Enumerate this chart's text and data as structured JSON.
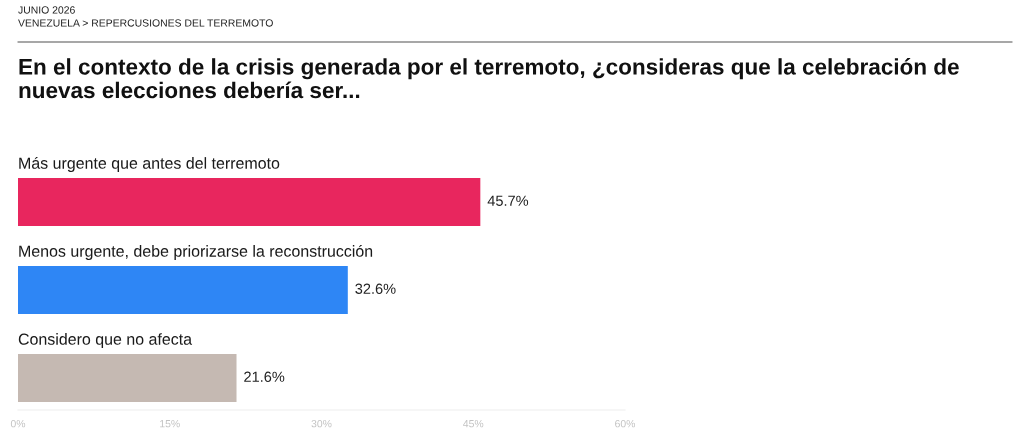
{
  "chart_data": {
    "type": "bar",
    "orientation": "horizontal",
    "title": "En el contexto de la crisis generada por el terremoto, ¿consideras que la celebración de nuevas elecciones debería ser...",
    "subtitle": "VENEZUELA > REPERCUSIONES DEL TERREMOTO",
    "annotations": [
      "JUNIO 2026"
    ],
    "categories": [
      "Más urgente que antes del terremoto",
      "Menos urgente, debe priorizarse la reconstrucción",
      "Considero que no afecta"
    ],
    "values": [
      45.7,
      32.6,
      21.6
    ],
    "colors": [
      "#e8265e",
      "#2e86f5",
      "#c5b9b2"
    ],
    "value_labels": [
      "45.7%",
      "32.6%",
      "21.6%"
    ],
    "xlim": [
      0,
      60
    ],
    "xticks": [
      {
        "value": 0,
        "label": "0%"
      },
      {
        "value": 15,
        "label": "15%"
      },
      {
        "value": 30,
        "label": "30%"
      },
      {
        "value": 45,
        "label": "45%"
      },
      {
        "value": 60,
        "label": "60%"
      }
    ]
  }
}
